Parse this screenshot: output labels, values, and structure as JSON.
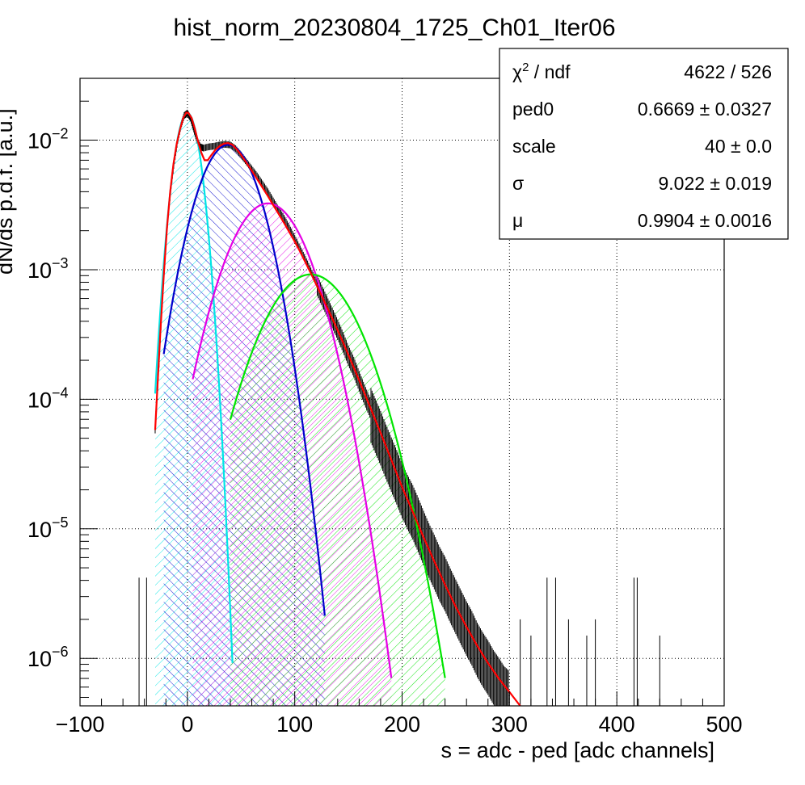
{
  "chart_data": {
    "type": "histogram-with-fits",
    "title": "hist_norm_20230804_1725_Ch01_Iter06",
    "xlabel": "s = adc - ped [adc channels]",
    "ylabel": "dN/ds p.d.f. [a.u.]",
    "xlim": [
      -100,
      500
    ],
    "ylim": [
      4.3e-07,
      0.03
    ],
    "yscale": "log",
    "grid": true,
    "x_ticks": [
      "−100",
      "0",
      "100",
      "200",
      "300",
      "400",
      "500"
    ],
    "x_tick_values": [
      -100,
      0,
      100,
      200,
      300,
      400,
      500
    ],
    "y_ticks": [
      {
        "value": 1e-06,
        "base": "10",
        "exp": "−6"
      },
      {
        "value": 1e-05,
        "base": "10",
        "exp": "−5"
      },
      {
        "value": 0.0001,
        "base": "10",
        "exp": "−4"
      },
      {
        "value": 0.001,
        "base": "10",
        "exp": "−3"
      },
      {
        "value": 0.01,
        "base": "10",
        "exp": "−2"
      }
    ],
    "histogram": {
      "color": "#000000",
      "points": [
        [
          -30,
          5.8e-05
        ],
        [
          -27,
          0.00015
        ],
        [
          -24,
          0.00045
        ],
        [
          -21,
          0.0012
        ],
        [
          -18,
          0.0026
        ],
        [
          -15,
          0.0045
        ],
        [
          -12,
          0.007
        ],
        [
          -9,
          0.01
        ],
        [
          -6,
          0.013
        ],
        [
          -3,
          0.0155
        ],
        [
          0,
          0.0162
        ],
        [
          3,
          0.0148
        ],
        [
          6,
          0.0122
        ],
        [
          9,
          0.01
        ],
        [
          12,
          0.0089
        ],
        [
          15,
          0.0087
        ],
        [
          20,
          0.0089
        ],
        [
          25,
          0.009
        ],
        [
          30,
          0.0092
        ],
        [
          35,
          0.0093
        ],
        [
          40,
          0.0092
        ],
        [
          45,
          0.0086
        ],
        [
          50,
          0.0077
        ],
        [
          55,
          0.0068
        ],
        [
          60,
          0.006
        ],
        [
          65,
          0.0053
        ],
        [
          70,
          0.0046
        ],
        [
          75,
          0.004
        ],
        [
          80,
          0.0034
        ],
        [
          85,
          0.0029
        ],
        [
          90,
          0.0025
        ],
        [
          95,
          0.0021
        ],
        [
          100,
          0.00175
        ],
        [
          105,
          0.00145
        ],
        [
          110,
          0.0012
        ],
        [
          115,
          0.00098
        ],
        [
          120,
          0.0008
        ],
        [
          125,
          0.00065
        ],
        [
          130,
          0.00053
        ],
        [
          135,
          0.00043
        ],
        [
          140,
          0.00035
        ],
        [
          145,
          0.00028
        ],
        [
          150,
          0.00022
        ],
        [
          155,
          0.00018
        ],
        [
          160,
          0.00014
        ],
        [
          165,
          0.00011
        ],
        [
          170,
          8.8e-05
        ],
        [
          175,
          7e-05
        ],
        [
          180,
          5.6e-05
        ],
        [
          185,
          4.4e-05
        ],
        [
          190,
          3.5e-05
        ],
        [
          195,
          2.8e-05
        ],
        [
          200,
          2.2e-05
        ],
        [
          205,
          1.8e-05
        ],
        [
          210,
          1.5e-05
        ],
        [
          215,
          1.2e-05
        ],
        [
          220,
          9.5e-06
        ],
        [
          225,
          7.6e-06
        ],
        [
          230,
          6.2e-06
        ],
        [
          235,
          5e-06
        ],
        [
          240,
          4.2e-06
        ],
        [
          245,
          3.4e-06
        ],
        [
          250,
          2.8e-06
        ],
        [
          255,
          2.3e-06
        ],
        [
          260,
          1.9e-06
        ],
        [
          265,
          1.6e-06
        ],
        [
          270,
          1.3e-06
        ],
        [
          275,
          1.1e-06
        ],
        [
          280,
          9.5e-07
        ],
        [
          285,
          8e-07
        ],
        [
          290,
          7e-07
        ],
        [
          295,
          6e-07
        ],
        [
          300,
          5.5e-07
        ]
      ]
    },
    "fit_components": [
      {
        "color": "#00e5e5",
        "mean": 0,
        "sigma": 9.5,
        "amp": 0.0162,
        "xmin": -30,
        "xmax": 42
      },
      {
        "color": "#0000cc",
        "mean": 38,
        "sigma": 22,
        "amp": 0.0092,
        "xmin": -22,
        "xmax": 128
      },
      {
        "color": "#e500e5",
        "mean": 75,
        "sigma": 28,
        "amp": 0.00325,
        "xmin": 5,
        "xmax": 190
      },
      {
        "color": "#00e500",
        "mean": 115,
        "sigma": 33,
        "amp": 0.00092,
        "xmin": 40,
        "xmax": 240
      }
    ],
    "total_fit": {
      "color": "#ff0000",
      "points": [
        [
          -30,
          5.8e-05
        ],
        [
          -28,
          0.00012
        ],
        [
          -25,
          0.00035
        ],
        [
          -22,
          0.0009
        ],
        [
          -19,
          0.0021
        ],
        [
          -16,
          0.004
        ],
        [
          -13,
          0.0065
        ],
        [
          -10,
          0.0093
        ],
        [
          -7,
          0.012
        ],
        [
          -4,
          0.0148
        ],
        [
          -1,
          0.0163
        ],
        [
          1,
          0.0162
        ],
        [
          4,
          0.0148
        ],
        [
          7,
          0.0122
        ],
        [
          10,
          0.0097
        ],
        [
          13,
          0.008
        ],
        [
          16,
          0.007
        ],
        [
          19,
          0.007
        ],
        [
          22,
          0.0076
        ],
        [
          26,
          0.0084
        ],
        [
          30,
          0.009
        ],
        [
          34,
          0.0094
        ],
        [
          38,
          0.0095
        ],
        [
          42,
          0.0092
        ],
        [
          46,
          0.0085
        ],
        [
          50,
          0.0077
        ],
        [
          55,
          0.0067
        ],
        [
          60,
          0.0058
        ],
        [
          65,
          0.005
        ],
        [
          70,
          0.0043
        ],
        [
          75,
          0.0037
        ],
        [
          80,
          0.00315
        ],
        [
          85,
          0.0027
        ],
        [
          90,
          0.0023
        ],
        [
          95,
          0.00195
        ],
        [
          100,
          0.00165
        ],
        [
          105,
          0.00138
        ],
        [
          110,
          0.00114
        ],
        [
          115,
          0.00094
        ],
        [
          120,
          0.00077
        ],
        [
          125,
          0.00063
        ],
        [
          130,
          0.000515
        ],
        [
          135,
          0.00042
        ],
        [
          140,
          0.00034
        ],
        [
          145,
          0.000275
        ],
        [
          150,
          0.00022
        ],
        [
          160,
          0.00014
        ],
        [
          170,
          8.8e-05
        ],
        [
          180,
          5.5e-05
        ],
        [
          190,
          3.4e-05
        ],
        [
          200,
          2.1e-05
        ],
        [
          210,
          1.35e-05
        ],
        [
          220,
          8.6e-06
        ],
        [
          230,
          5.6e-06
        ],
        [
          240,
          3.7e-06
        ],
        [
          250,
          2.5e-06
        ],
        [
          260,
          1.75e-06
        ],
        [
          270,
          1.25e-06
        ],
        [
          280,
          9.2e-07
        ],
        [
          290,
          7e-07
        ],
        [
          300,
          5.5e-07
        ],
        [
          310,
          4.3e-07
        ]
      ]
    },
    "stats_box": {
      "rows": [
        {
          "label_main": "χ",
          "label_sup": "2",
          "label_rest": " / ndf",
          "value": "4622 / 526"
        },
        {
          "label_main": "ped0",
          "label_sup": "",
          "label_rest": "",
          "value": "0.6669 ± 0.0327"
        },
        {
          "label_main": "scale",
          "label_sup": "",
          "label_rest": "",
          "value": "40 ± 0.0"
        },
        {
          "label_main": "σ",
          "label_sup": "",
          "label_rest": "",
          "value": "9.022 ± 0.019"
        },
        {
          "label_main": "μ",
          "label_sup": "",
          "label_rest": "",
          "value": "0.9904 ± 0.0016"
        }
      ]
    }
  }
}
